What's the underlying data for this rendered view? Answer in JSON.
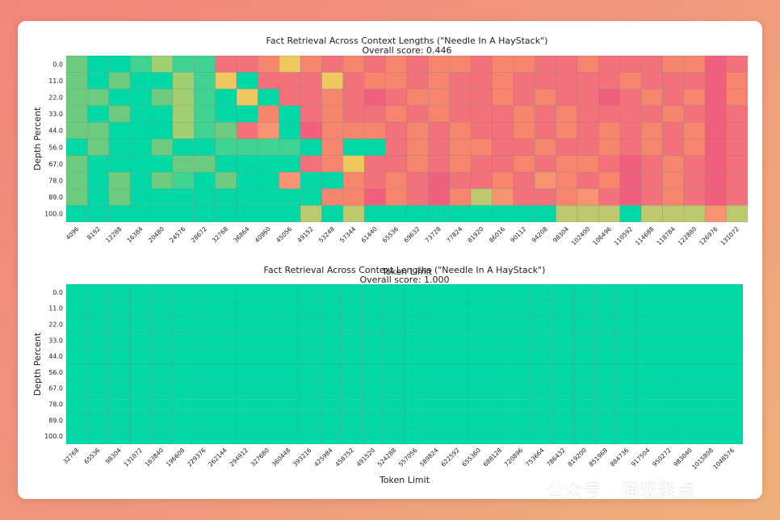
{
  "colors": {
    "green": "#00d9a6",
    "green_light": "#3fd391",
    "green_mid": "#6bcc7f",
    "green_yellow": "#a1cf72",
    "yellow": "#eec75e",
    "orange": "#f69370",
    "salmon": "#f7846d",
    "pink": "#f2717b",
    "hot_pink": "#f05f7c",
    "olive": "#bcc96d",
    "background": "#ffffff"
  },
  "watermark": {
    "text": "公众号 · 涌现聚点",
    "icon": "wechat-icon"
  },
  "chart_data": [
    {
      "type": "heatmap",
      "title": "Fact Retrieval Across Context Lengths (\"Needle In A HayStack\")",
      "subtitle": "Overall score: 0.446",
      "xlabel": "Token Limit",
      "ylabel": "Depth Percent",
      "x": [
        4096,
        8192,
        12288,
        16384,
        20480,
        24576,
        28672,
        32768,
        36864,
        40960,
        45056,
        49152,
        53248,
        57344,
        61440,
        65536,
        69632,
        73728,
        77824,
        81920,
        86016,
        90112,
        94208,
        98304,
        102400,
        106496,
        110592,
        114688,
        118784,
        122880,
        126976,
        131072
      ],
      "y": [
        "0.0",
        "11.0",
        "22.0",
        "33.0",
        "44.0",
        "56.0",
        "67.0",
        "78.0",
        "89.0",
        "100.0"
      ],
      "cell_color_keys": [
        [
          "gm",
          "gr",
          "gr",
          "gl",
          "gy",
          "gl",
          "gl",
          "pk",
          "pk",
          "sa",
          "ye",
          "sa",
          "pk",
          "sa",
          "pk",
          "sa",
          "pk",
          "sa",
          "sa",
          "pk",
          "sa",
          "sa",
          "pk",
          "pk",
          "sa",
          "pk",
          "pk",
          "pk",
          "sa",
          "sa",
          "hp",
          "pk"
        ],
        [
          "gm",
          "gr",
          "gm",
          "gr",
          "gr",
          "gy",
          "gl",
          "ye",
          "gr",
          "pk",
          "pk",
          "pk",
          "ye",
          "pk",
          "sa",
          "sa",
          "pk",
          "sa",
          "pk",
          "pk",
          "sa",
          "pk",
          "pk",
          "pk",
          "pk",
          "pk",
          "sa",
          "pk",
          "pk",
          "pk",
          "hp",
          "sa"
        ],
        [
          "gm",
          "gm",
          "gr",
          "gr",
          "gm",
          "gy",
          "gl",
          "gr",
          "ye",
          "gr",
          "pk",
          "pk",
          "sa",
          "pk",
          "hp",
          "pk",
          "sa",
          "sa",
          "pk",
          "pk",
          "sa",
          "pk",
          "sa",
          "pk",
          "pk",
          "hp",
          "pk",
          "sa",
          "pk",
          "sa",
          "hp",
          "sa"
        ],
        [
          "gm",
          "gr",
          "gm",
          "gr",
          "gr",
          "gy",
          "gl",
          "gr",
          "gr",
          "sa",
          "gr",
          "pk",
          "sa",
          "pk",
          "pk",
          "sa",
          "pk",
          "sa",
          "pk",
          "pk",
          "pk",
          "sa",
          "pk",
          "sa",
          "pk",
          "pk",
          "pk",
          "pk",
          "sa",
          "pk",
          "hp",
          "pk"
        ],
        [
          "gm",
          "gm",
          "gr",
          "gr",
          "gr",
          "gy",
          "gl",
          "gm",
          "pk",
          "or",
          "gr",
          "hp",
          "sa",
          "sa",
          "sa",
          "pk",
          "sa",
          "pk",
          "sa",
          "pk",
          "pk",
          "sa",
          "pk",
          "sa",
          "pk",
          "sa",
          "pk",
          "sa",
          "pk",
          "sa",
          "hp",
          "pk"
        ],
        [
          "gr",
          "gm",
          "gr",
          "gr",
          "gm",
          "gr",
          "gr",
          "gl",
          "gl",
          "gl",
          "gl",
          "gr",
          "sa",
          "gr",
          "gr",
          "pk",
          "sa",
          "pk",
          "sa",
          "sa",
          "pk",
          "pk",
          "sa",
          "pk",
          "pk",
          "sa",
          "pk",
          "sa",
          "pk",
          "sa",
          "hp",
          "pk"
        ],
        [
          "gm",
          "gr",
          "gr",
          "gr",
          "gr",
          "gm",
          "gm",
          "gr",
          "gr",
          "gr",
          "gr",
          "pk",
          "sa",
          "ye",
          "pk",
          "pk",
          "sa",
          "pk",
          "sa",
          "pk",
          "pk",
          "sa",
          "pk",
          "sa",
          "sa",
          "pk",
          "hp",
          "pk",
          "sa",
          "pk",
          "hp",
          "pk"
        ],
        [
          "gm",
          "gr",
          "gm",
          "gr",
          "gm",
          "gl",
          "gr",
          "gm",
          "gr",
          "gr",
          "or",
          "gr",
          "gr",
          "sa",
          "pk",
          "sa",
          "pk",
          "hp",
          "pk",
          "pk",
          "sa",
          "pk",
          "or",
          "sa",
          "pk",
          "sa",
          "hp",
          "pk",
          "sa",
          "pk",
          "hp",
          "pk"
        ],
        [
          "gm",
          "gr",
          "gm",
          "gr",
          "gr",
          "gr",
          "gr",
          "gr",
          "gr",
          "gr",
          "gr",
          "gr",
          "sa",
          "sa",
          "hp",
          "sa",
          "pk",
          "hp",
          "sa",
          "ol",
          "or",
          "pk",
          "pk",
          "sa",
          "or",
          "pk",
          "hp",
          "pk",
          "sa",
          "pk",
          "hp",
          "pk"
        ],
        [
          "gr",
          "gr",
          "gr",
          "gr",
          "gr",
          "gr",
          "gr",
          "gr",
          "gr",
          "gr",
          "gr",
          "ol",
          "gr",
          "ol",
          "gr",
          "gr",
          "gr",
          "gr",
          "gr",
          "gr",
          "gr",
          "gr",
          "gr",
          "ol",
          "ol",
          "ol",
          "gr",
          "ol",
          "ol",
          "ol",
          "or",
          "ol"
        ]
      ]
    },
    {
      "type": "heatmap",
      "title": "Fact Retrieval Across Context Lengths (\"Needle In A HayStack\")",
      "subtitle": "Overall score: 1.000",
      "xlabel": "Token Limit",
      "ylabel": "Depth Percent",
      "x": [
        32768,
        65536,
        98304,
        131072,
        163840,
        196608,
        229376,
        262144,
        294912,
        327680,
        360448,
        393216,
        425984,
        458752,
        491520,
        524288,
        557056,
        589824,
        622592,
        655360,
        688128,
        720896,
        753664,
        786432,
        819200,
        851968,
        884736,
        917504,
        950272,
        983040,
        1015808,
        1048576
      ],
      "y": [
        "0.0",
        "11.0",
        "22.0",
        "33.0",
        "44.0",
        "56.0",
        "67.0",
        "78.0",
        "89.0",
        "100.0"
      ],
      "score": 1.0
    }
  ]
}
